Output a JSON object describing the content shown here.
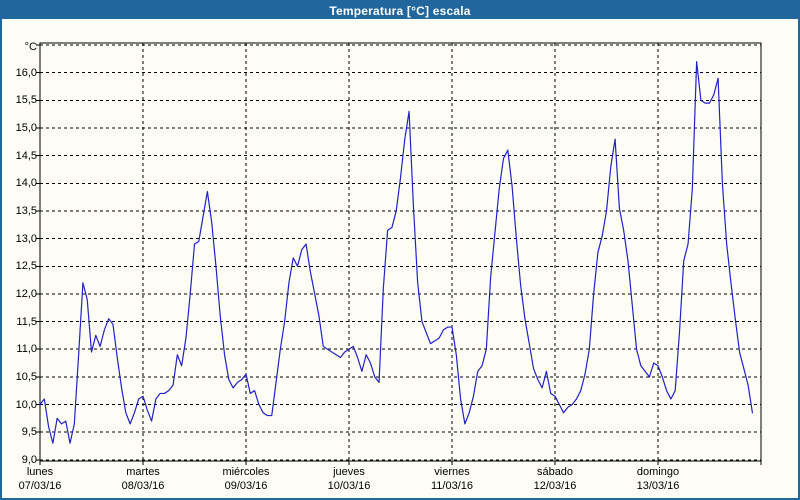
{
  "window": {
    "title": "Temperatura [°C] escala"
  },
  "colors": {
    "titlebar_bg": "#21679D",
    "window_border": "#21679D",
    "title_text": "#FFFFFF",
    "chart_bg": "#FDFDF5",
    "line": "#2121C8",
    "grid": "#000000",
    "axis_text": "#000000"
  },
  "chart_data": {
    "type": "line",
    "title": "Temperatura [°C] escala",
    "y_unit_label": "°C",
    "grid": "dashed",
    "legend": "none",
    "y_axis": {
      "min": 9.0,
      "max": 16.5,
      "step": 0.5,
      "tick_labels_top_to_bottom": [
        "16,0",
        "15,5",
        "15,0",
        "14,5",
        "14,0",
        "13,5",
        "13,0",
        "12,5",
        "12,0",
        "11,5",
        "11,0",
        "10,5",
        "10,0",
        "9,5",
        "9,0"
      ]
    },
    "x_axis": {
      "day_labels": [
        {
          "name": "lunes",
          "date": "07/03/16"
        },
        {
          "name": "martes",
          "date": "08/03/16"
        },
        {
          "name": "miércoles",
          "date": "09/03/16"
        },
        {
          "name": "jueves",
          "date": "10/03/16"
        },
        {
          "name": "viernes",
          "date": "11/03/16"
        },
        {
          "name": "sábado",
          "date": "12/03/16"
        },
        {
          "name": "domingo",
          "date": "13/03/16"
        }
      ]
    },
    "series": [
      {
        "name": "Temperatura [°C]",
        "interval_hours": 1,
        "daily_peaks": [
          12.2,
          13.85,
          12.9,
          15.3,
          14.6,
          14.8,
          16.2
        ],
        "values": [
          10.0,
          10.1,
          9.6,
          9.3,
          9.75,
          9.65,
          9.7,
          9.3,
          9.65,
          10.9,
          12.2,
          11.9,
          10.95,
          11.25,
          11.05,
          11.35,
          11.55,
          11.45,
          10.85,
          10.3,
          9.85,
          9.65,
          9.85,
          10.1,
          10.15,
          9.9,
          9.7,
          10.1,
          10.2,
          10.2,
          10.25,
          10.35,
          10.9,
          10.7,
          11.2,
          12.0,
          12.9,
          12.95,
          13.4,
          13.85,
          13.3,
          12.5,
          11.6,
          10.9,
          10.45,
          10.3,
          10.4,
          10.45,
          10.55,
          10.2,
          10.25,
          10.0,
          9.85,
          9.8,
          9.8,
          10.4,
          11.0,
          11.5,
          12.2,
          12.65,
          12.5,
          12.8,
          12.9,
          12.4,
          12.0,
          11.6,
          11.05,
          11.0,
          10.95,
          10.9,
          10.85,
          10.95,
          11.0,
          11.05,
          10.85,
          10.6,
          10.9,
          10.75,
          10.5,
          10.4,
          12.1,
          13.15,
          13.2,
          13.5,
          14.1,
          14.8,
          15.3,
          13.6,
          12.2,
          11.5,
          11.3,
          11.1,
          11.15,
          11.2,
          11.35,
          11.4,
          11.4,
          10.9,
          10.1,
          9.65,
          9.85,
          10.15,
          10.6,
          10.7,
          11.0,
          12.3,
          13.1,
          13.9,
          14.45,
          14.6,
          13.95,
          13.0,
          12.15,
          11.55,
          11.1,
          10.65,
          10.45,
          10.3,
          10.6,
          10.2,
          10.15,
          10.0,
          9.85,
          9.95,
          10.0,
          10.1,
          10.25,
          10.55,
          11.0,
          12.0,
          12.75,
          13.05,
          13.5,
          14.3,
          14.8,
          13.55,
          13.15,
          12.6,
          11.8,
          11.0,
          10.7,
          10.6,
          10.5,
          10.75,
          10.7,
          10.5,
          10.25,
          10.1,
          10.25,
          11.3,
          12.6,
          12.9,
          13.9,
          16.2,
          15.5,
          15.45,
          15.45,
          15.6,
          15.9,
          14.0,
          12.9,
          12.2,
          11.55,
          10.95,
          10.65,
          10.35,
          9.85
        ]
      }
    ]
  }
}
